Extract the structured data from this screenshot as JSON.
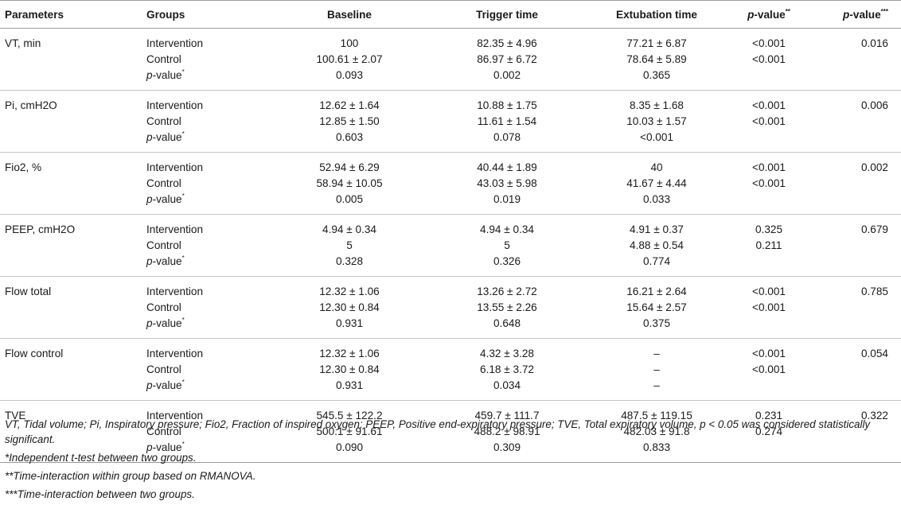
{
  "header": {
    "parameters": "Parameters",
    "groups": "Groups",
    "baseline": "Baseline",
    "trigger_time": "Trigger time",
    "extubation_time": "Extubation time",
    "pvalue_within": "value",
    "pvalue_within_sup": "**",
    "pvalue_between": "value",
    "pvalue_between_sup": "***",
    "p_prefix": "p-"
  },
  "rows": [
    {
      "param": "VT, min",
      "group": "Intervention",
      "baseline": "100",
      "trigger": "82.35 ± 4.96",
      "extubation": "77.21 ± 6.87",
      "p_within": "<0.001",
      "p_between": "0.016"
    },
    {
      "param": "",
      "group": "Control",
      "baseline": "100.61 ± 2.07",
      "trigger": "86.97 ± 6.72",
      "extubation": "78.64 ± 5.89",
      "p_within": "<0.001",
      "p_between": ""
    },
    {
      "param": "",
      "group": "p-value*",
      "baseline": "0.093",
      "trigger": "0.002",
      "extubation": "0.365",
      "p_within": "",
      "p_between": ""
    },
    {
      "param": "Pi, cmH2O",
      "group": "Intervention",
      "baseline": "12.62 ± 1.64",
      "trigger": "10.88 ± 1.75",
      "extubation": "8.35 ± 1.68",
      "p_within": "<0.001",
      "p_between": "0.006"
    },
    {
      "param": "",
      "group": "Control",
      "baseline": "12.85 ± 1.50",
      "trigger": "11.61 ± 1.54",
      "extubation": "10.03 ± 1.57",
      "p_within": "<0.001",
      "p_between": ""
    },
    {
      "param": "",
      "group": "p-value*",
      "baseline": "0.603",
      "trigger": "0.078",
      "extubation": "<0.001",
      "p_within": "",
      "p_between": ""
    },
    {
      "param": "Fio2, %",
      "group": "Intervention",
      "baseline": "52.94 ± 6.29",
      "trigger": "40.44 ± 1.89",
      "extubation": "40",
      "p_within": "<0.001",
      "p_between": "0.002"
    },
    {
      "param": "",
      "group": "Control",
      "baseline": "58.94 ± 10.05",
      "trigger": "43.03 ± 5.98",
      "extubation": "41.67 ± 4.44",
      "p_within": "<0.001",
      "p_between": ""
    },
    {
      "param": "",
      "group": "p-value*",
      "baseline": "0.005",
      "trigger": "0.019",
      "extubation": "0.033",
      "p_within": "",
      "p_between": ""
    },
    {
      "param": "PEEP, cmH2O",
      "group": "Intervention",
      "baseline": "4.94 ± 0.34",
      "trigger": "4.94 ± 0.34",
      "extubation": "4.91 ± 0.37",
      "p_within": "0.325",
      "p_between": "0.679"
    },
    {
      "param": "",
      "group": "Control",
      "baseline": "5",
      "trigger": "5",
      "extubation": "4.88 ± 0.54",
      "p_within": "0.211",
      "p_between": ""
    },
    {
      "param": "",
      "group": "p-value*",
      "baseline": "0.328",
      "trigger": "0.326",
      "extubation": "0.774",
      "p_within": "",
      "p_between": ""
    },
    {
      "param": "Flow total",
      "group": "Intervention",
      "baseline": "12.32 ± 1.06",
      "trigger": "13.26 ± 2.72",
      "extubation": "16.21 ± 2.64",
      "p_within": "<0.001",
      "p_between": "0.785"
    },
    {
      "param": "",
      "group": "Control",
      "baseline": "12.30 ± 0.84",
      "trigger": "13.55 ± 2.26",
      "extubation": "15.64 ± 2.57",
      "p_within": "<0.001",
      "p_between": ""
    },
    {
      "param": "",
      "group": "p-value*",
      "baseline": "0.931",
      "trigger": "0.648",
      "extubation": "0.375",
      "p_within": "",
      "p_between": ""
    },
    {
      "param": "Flow control",
      "group": "Intervention",
      "baseline": "12.32 ± 1.06",
      "trigger": "4.32 ± 3.28",
      "extubation": "–",
      "p_within": "<0.001",
      "p_between": "0.054"
    },
    {
      "param": "",
      "group": "Control",
      "baseline": "12.30 ± 0.84",
      "trigger": "6.18 ± 3.72",
      "extubation": "–",
      "p_within": "<0.001",
      "p_between": ""
    },
    {
      "param": "",
      "group": "p-value*",
      "baseline": "0.931",
      "trigger": "0.034",
      "extubation": "–",
      "p_within": "",
      "p_between": ""
    },
    {
      "param": "TVE",
      "group": "Intervention",
      "baseline": "545.5 ± 122.2",
      "trigger": "459.7 ± 111.7",
      "extubation": "487.5 ± 119.15",
      "p_within": "0.231",
      "p_between": "0.322"
    },
    {
      "param": "",
      "group": "Control",
      "baseline": "500.1 ± 91.61",
      "trigger": "488.2 ± 98.91",
      "extubation": "482.03 ± 91.8",
      "p_within": "0.274",
      "p_between": ""
    },
    {
      "param": "",
      "group": "p-value*",
      "baseline": "0.090",
      "trigger": "0.309",
      "extubation": "0.833",
      "p_within": "",
      "p_between": ""
    }
  ],
  "notes": {
    "abbrev": "VT, Tidal volume; Pi, Inspiratory pressure; Fio2, Fraction of inspired oxygen; PEEP, Positive end-expiratory pressure; TVE, Total expiratory volume, p < 0.05 was considered statistically significant.",
    "n1": "*Independent t-test between two groups.",
    "n2": "**Time-interaction within group based on RMANOVA.",
    "n3": "***Time-interaction between two groups."
  }
}
